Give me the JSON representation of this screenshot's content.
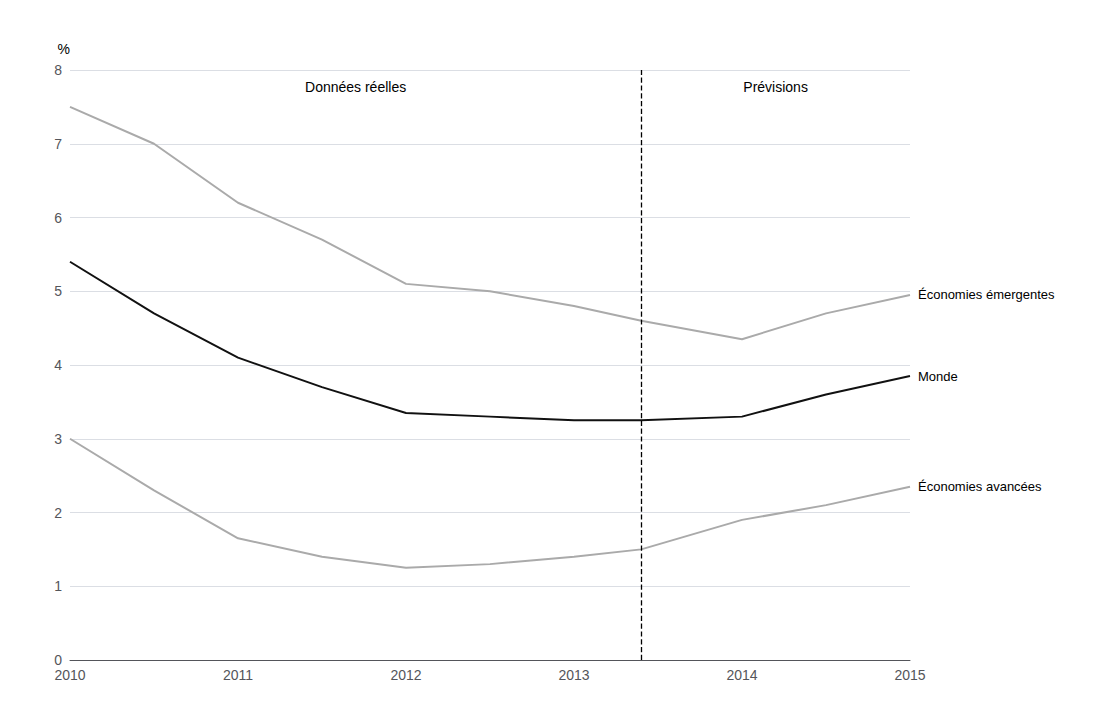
{
  "chart_data": {
    "type": "line",
    "x": [
      2010,
      2010.5,
      2011,
      2011.5,
      2012,
      2012.5,
      2013,
      2013.4,
      2014,
      2014.5,
      2015
    ],
    "series": [
      {
        "name": "Économies émergentes",
        "color": "#aaaaaa",
        "values": [
          7.5,
          7.0,
          6.2,
          5.7,
          5.1,
          5.0,
          4.8,
          4.6,
          4.35,
          4.7,
          4.95
        ]
      },
      {
        "name": "Monde",
        "color": "#111111",
        "values": [
          5.4,
          4.7,
          4.1,
          3.7,
          3.35,
          3.3,
          3.25,
          3.25,
          3.3,
          3.6,
          3.85
        ]
      },
      {
        "name": "Économies avancées",
        "color": "#aaaaaa",
        "values": [
          3.0,
          2.3,
          1.65,
          1.4,
          1.25,
          1.3,
          1.4,
          1.5,
          1.9,
          2.1,
          2.35
        ]
      }
    ],
    "y_label": "%",
    "xlim": [
      2010,
      2015
    ],
    "xticks": [
      2010,
      2011,
      2012,
      2013,
      2014,
      2015
    ],
    "ylim": [
      0,
      8
    ],
    "yticks": [
      0,
      1,
      2,
      3,
      4,
      5,
      6,
      7,
      8
    ],
    "grid": true,
    "vertical_line": {
      "x": 2013.4,
      "line_style": "dashed"
    },
    "sections": [
      {
        "label": "Données réelles"
      },
      {
        "label": "Prévisions"
      }
    ]
  }
}
